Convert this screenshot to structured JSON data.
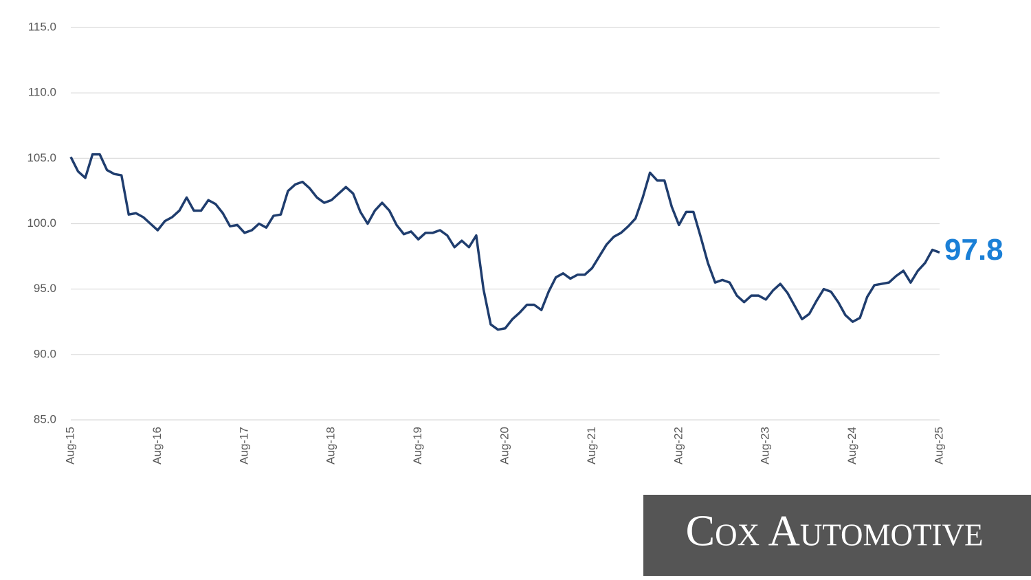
{
  "chart_data": {
    "type": "line",
    "categories": [
      "Aug-15",
      null,
      null,
      null,
      null,
      null,
      null,
      null,
      null,
      null,
      null,
      null,
      "Aug-16",
      null,
      null,
      null,
      null,
      null,
      null,
      null,
      null,
      null,
      null,
      null,
      "Aug-17",
      null,
      null,
      null,
      null,
      null,
      null,
      null,
      null,
      null,
      null,
      null,
      "Aug-18",
      null,
      null,
      null,
      null,
      null,
      null,
      null,
      null,
      null,
      null,
      null,
      "Aug-19",
      null,
      null,
      null,
      null,
      null,
      null,
      null,
      null,
      null,
      null,
      null,
      "Aug-20",
      null,
      null,
      null,
      null,
      null,
      null,
      null,
      null,
      null,
      null,
      null,
      "Aug-21",
      null,
      null,
      null,
      null,
      null,
      null,
      null,
      null,
      null,
      null,
      null,
      "Aug-22",
      null,
      null,
      null,
      null,
      null,
      null,
      null,
      null,
      null,
      null,
      null,
      "Aug-23",
      null,
      null,
      null,
      null,
      null,
      null,
      null,
      null,
      null,
      null,
      null,
      "Aug-24",
      null,
      null,
      null,
      null,
      null,
      null,
      null,
      null,
      null,
      null,
      null,
      "Aug-25"
    ],
    "values": [
      105.1,
      104.0,
      103.5,
      105.3,
      105.3,
      104.1,
      103.8,
      103.7,
      100.7,
      100.8,
      100.5,
      100.0,
      99.5,
      100.2,
      100.5,
      101.0,
      102.0,
      101.0,
      101.0,
      101.8,
      101.5,
      100.8,
      99.8,
      99.9,
      99.3,
      99.5,
      100.0,
      99.7,
      100.6,
      100.7,
      102.5,
      103.0,
      103.2,
      102.7,
      102.0,
      101.6,
      101.8,
      102.3,
      102.8,
      102.3,
      100.9,
      100.0,
      101.0,
      101.6,
      101.0,
      99.9,
      99.2,
      99.4,
      98.8,
      99.3,
      99.3,
      99.5,
      99.1,
      98.2,
      98.7,
      98.2,
      99.1,
      95.0,
      92.3,
      91.9,
      92.0,
      92.7,
      93.2,
      93.8,
      93.8,
      93.4,
      94.8,
      95.9,
      96.2,
      95.8,
      96.1,
      96.1,
      96.6,
      97.5,
      98.4,
      99.0,
      99.3,
      99.8,
      100.4,
      102.0,
      103.9,
      103.3,
      103.3,
      101.3,
      99.9,
      100.9,
      100.9,
      99.0,
      97.0,
      95.5,
      95.7,
      95.5,
      94.5,
      94.0,
      94.5,
      94.5,
      94.2,
      94.9,
      95.4,
      94.7,
      93.7,
      92.7,
      93.1,
      94.1,
      95.0,
      94.8,
      94.0,
      93.0,
      92.5,
      92.8,
      94.4,
      95.3,
      95.4,
      95.5,
      96.0,
      96.4,
      95.5,
      96.4,
      97.0,
      98.0,
      97.8
    ],
    "color": "#1f3d6e",
    "label_color": "#1a7fd6",
    "ylim": [
      85,
      115
    ],
    "yticks": [
      {
        "value": 85,
        "label": "85.0"
      },
      {
        "value": 90,
        "label": "90.0"
      },
      {
        "value": 95,
        "label": "95.0"
      },
      {
        "value": 100,
        "label": "100.0"
      },
      {
        "value": 105,
        "label": "105.0"
      },
      {
        "value": 110,
        "label": "110.0"
      },
      {
        "value": 115,
        "label": "115.0"
      }
    ],
    "grid": true
  },
  "logo": "Cox Automotive"
}
